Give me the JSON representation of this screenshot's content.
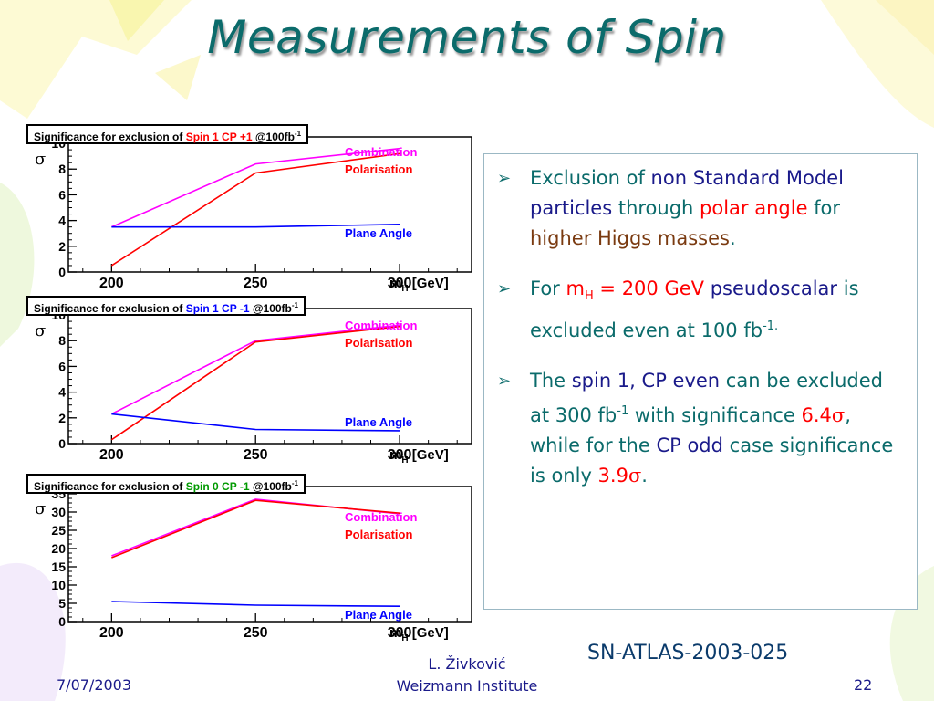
{
  "slide": {
    "title": "Measurements of Spin",
    "reference": "SN-ATLAS-2003-025",
    "footer": {
      "date": "7/07/2003",
      "author": "L. Živković",
      "institute": "Weizmann Institute",
      "page": "22"
    }
  },
  "bullets": {
    "b1": {
      "p1": "Exclusion of ",
      "p2": "non Standard Model particles",
      "p3": " through ",
      "p4": "polar angle",
      "p5": " for ",
      "p6": "higher Higgs masses",
      "p7": "."
    },
    "b2": {
      "p1": "For ",
      "p2": "m",
      "p2sub": "H",
      "p3": " = 200 GeV",
      "p4": " pseudoscalar",
      "p5": " is excluded even at 100 fb",
      "p5sup": "-1."
    },
    "b3": {
      "p1": "The ",
      "p2": "spin 1, CP even",
      "p3": " can be excluded at 300 fb",
      "p3sup": "-1",
      "p4": " with significance ",
      "p5": "6.4",
      "p6": ", while for the ",
      "p7": "CP odd",
      "p8": " case significance is only ",
      "p9": "3.9",
      "p10": "."
    }
  },
  "colors": {
    "combination": "#ff00ff",
    "polarisation": "#ff0000",
    "plane_angle": "#0000ff",
    "title": "#0b6b6b"
  },
  "chart_data": [
    {
      "type": "line",
      "title_prefix": "Significance for exclusion of ",
      "title_highlight": "Spin 1 CP +1",
      "title_suffix": "  @100fb",
      "title_sup": "-1",
      "highlight_color": "#ff0000",
      "ylabel": "σ",
      "xlabel": "m",
      "xlabel_sub": "H",
      "xlabel_unit": " [GeV]",
      "x": [
        200,
        250,
        300
      ],
      "xlim": [
        185,
        325
      ],
      "ylim": [
        0,
        10.5
      ],
      "yticks": [
        0,
        2,
        4,
        6,
        8,
        10
      ],
      "series": [
        {
          "name": "Combination",
          "color": "#ff00ff",
          "values": [
            3.5,
            8.4,
            9.6
          ]
        },
        {
          "name": "Polarisation",
          "color": "#ff0000",
          "values": [
            0.5,
            7.7,
            9.2
          ]
        },
        {
          "name": "Plane Angle",
          "color": "#0000ff",
          "values": [
            3.5,
            3.5,
            3.7
          ]
        }
      ]
    },
    {
      "type": "line",
      "title_prefix": "Significance for exclusion of ",
      "title_highlight": "Spin 1 CP -1",
      "title_suffix": "  @100fb",
      "title_sup": "-1",
      "highlight_color": "#0000ff",
      "ylabel": "σ",
      "xlabel": "m",
      "xlabel_sub": "H",
      "xlabel_unit": " [GeV]",
      "x": [
        200,
        250,
        300
      ],
      "xlim": [
        185,
        325
      ],
      "ylim": [
        0,
        10.5
      ],
      "yticks": [
        0,
        2,
        4,
        6,
        8,
        10
      ],
      "series": [
        {
          "name": "Combination",
          "color": "#ff00ff",
          "values": [
            2.3,
            8.0,
            9.2
          ]
        },
        {
          "name": "Polarisation",
          "color": "#ff0000",
          "values": [
            0.3,
            7.9,
            9.1
          ]
        },
        {
          "name": "Plane Angle",
          "color": "#0000ff",
          "values": [
            2.3,
            1.1,
            1.0
          ]
        }
      ]
    },
    {
      "type": "line",
      "title_prefix": "Significance for exclusion of ",
      "title_highlight": "Spin 0 CP -1",
      "title_suffix": "  @100fb",
      "title_sup": "-1",
      "highlight_color": "#009900",
      "ylabel": "σ",
      "xlabel": "m",
      "xlabel_sub": "H",
      "xlabel_unit": " [GeV]",
      "x": [
        200,
        250,
        300
      ],
      "xlim": [
        185,
        325
      ],
      "ylim": [
        0,
        37
      ],
      "yticks": [
        0,
        5,
        10,
        15,
        20,
        25,
        30,
        35
      ],
      "series": [
        {
          "name": "Combination",
          "color": "#ff00ff",
          "values": [
            18,
            33.5,
            29.5
          ]
        },
        {
          "name": "Polarisation",
          "color": "#ff0000",
          "values": [
            17.5,
            33.2,
            29.7
          ]
        },
        {
          "name": "Plane Angle",
          "color": "#0000ff",
          "values": [
            5.5,
            4.5,
            4.2
          ]
        }
      ]
    }
  ]
}
